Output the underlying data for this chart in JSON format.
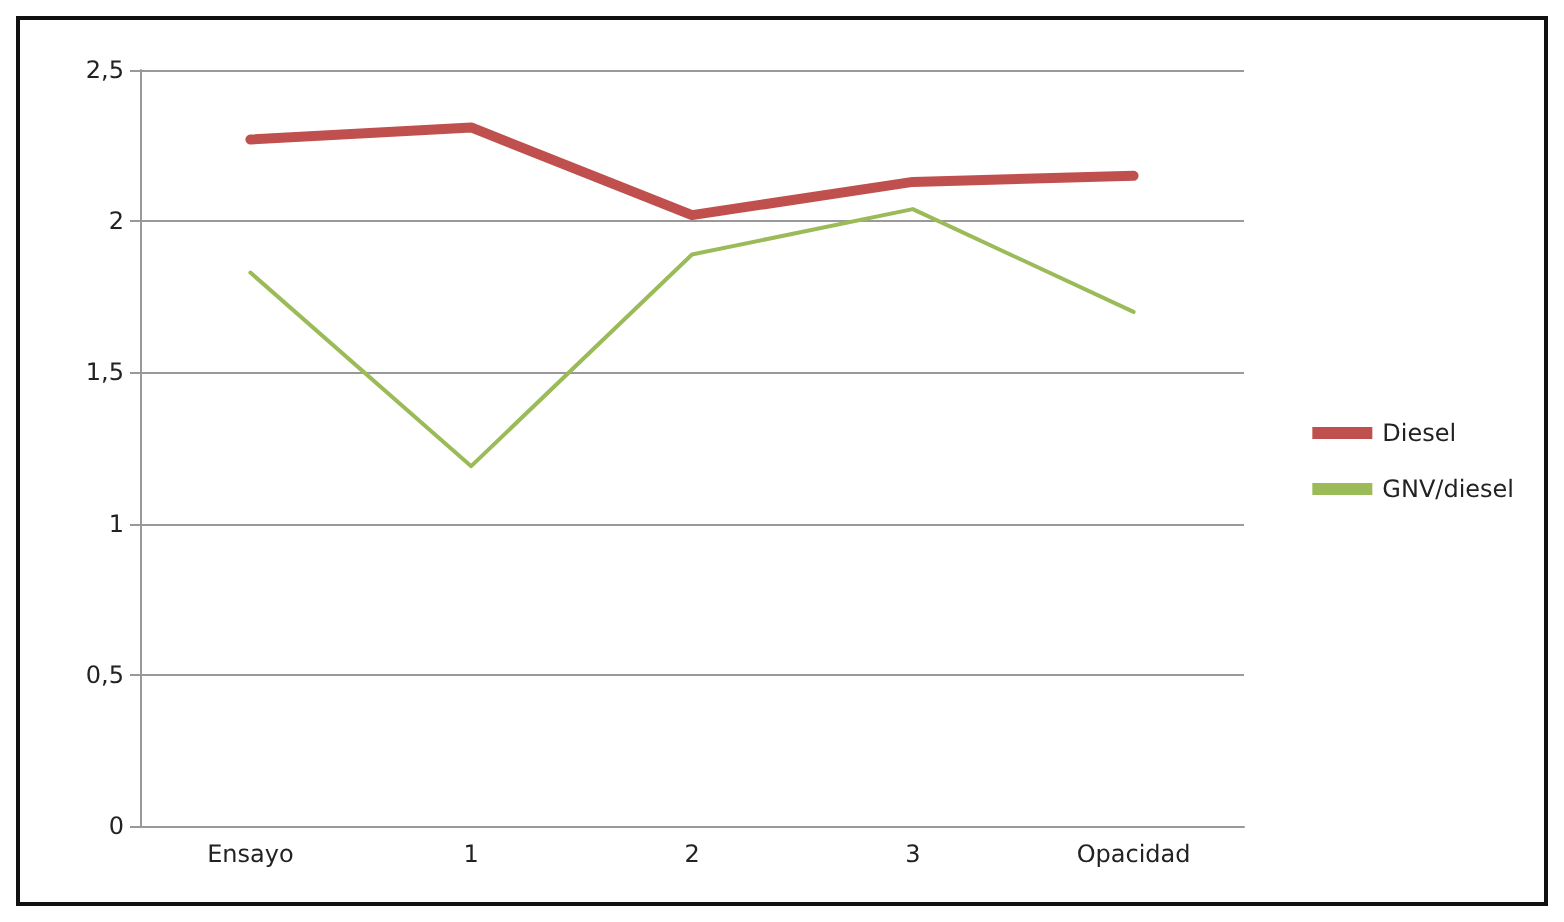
{
  "chart_data": {
    "type": "line",
    "categories": [
      "Ensayo",
      "1",
      "2",
      "3",
      "Opacidad"
    ],
    "series": [
      {
        "name": "Diesel",
        "color": "#c0504d",
        "values": [
          2.27,
          2.31,
          2.02,
          2.13,
          2.15
        ]
      },
      {
        "name": "GNV/diesel",
        "color": "#9bbb59",
        "values": [
          1.83,
          1.19,
          1.89,
          2.04,
          1.7
        ]
      }
    ],
    "ylim": [
      0,
      2.5
    ],
    "yticks": [
      0,
      {
        "value": 0.5,
        "label": "0,5"
      },
      1,
      {
        "value": 1.5,
        "label": "1,5"
      },
      2,
      {
        "value": 2.5,
        "label": "2,5"
      }
    ],
    "grid": "y",
    "legend": "right",
    "marker": "none",
    "line_style": "solid"
  }
}
